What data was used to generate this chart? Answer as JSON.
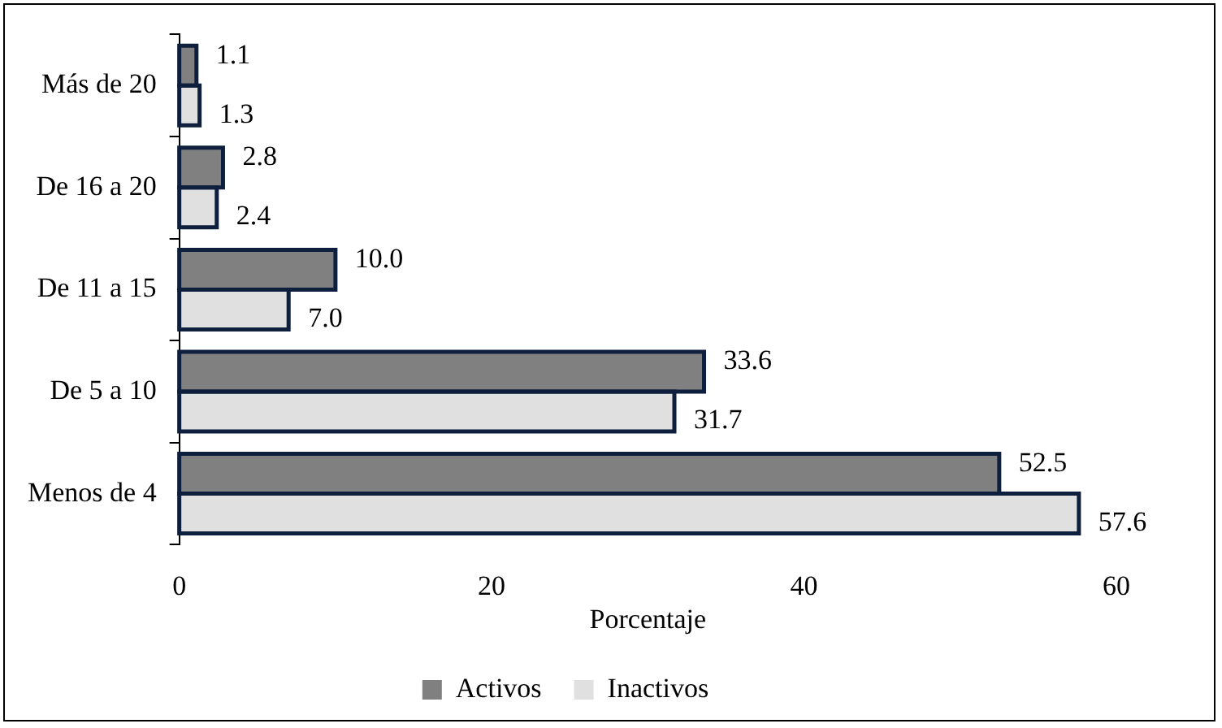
{
  "chart_data": {
    "type": "bar",
    "orientation": "horizontal",
    "xlabel": "Porcentaje",
    "categories": [
      "Más de 20",
      "De 16 a 20",
      "De 11 a 15",
      "De 5 a 10",
      "Menos de 4"
    ],
    "series": [
      {
        "name": "Activos",
        "color": "#808080",
        "values": [
          1.1,
          2.8,
          10.0,
          33.6,
          52.5
        ],
        "value_labels": [
          "1.1",
          "2.8",
          "10.0",
          "33.6",
          "52.5"
        ]
      },
      {
        "name": "Inactivos",
        "color": "#e0e0e0",
        "values": [
          1.3,
          2.4,
          7.0,
          31.7,
          57.6
        ],
        "value_labels": [
          "1.3",
          "2.4",
          "7.0",
          "31.7",
          "57.6"
        ]
      }
    ],
    "xlim": [
      0,
      60
    ],
    "xticks": [
      0,
      20,
      40,
      60
    ],
    "grid": false,
    "legend": "bottom"
  }
}
